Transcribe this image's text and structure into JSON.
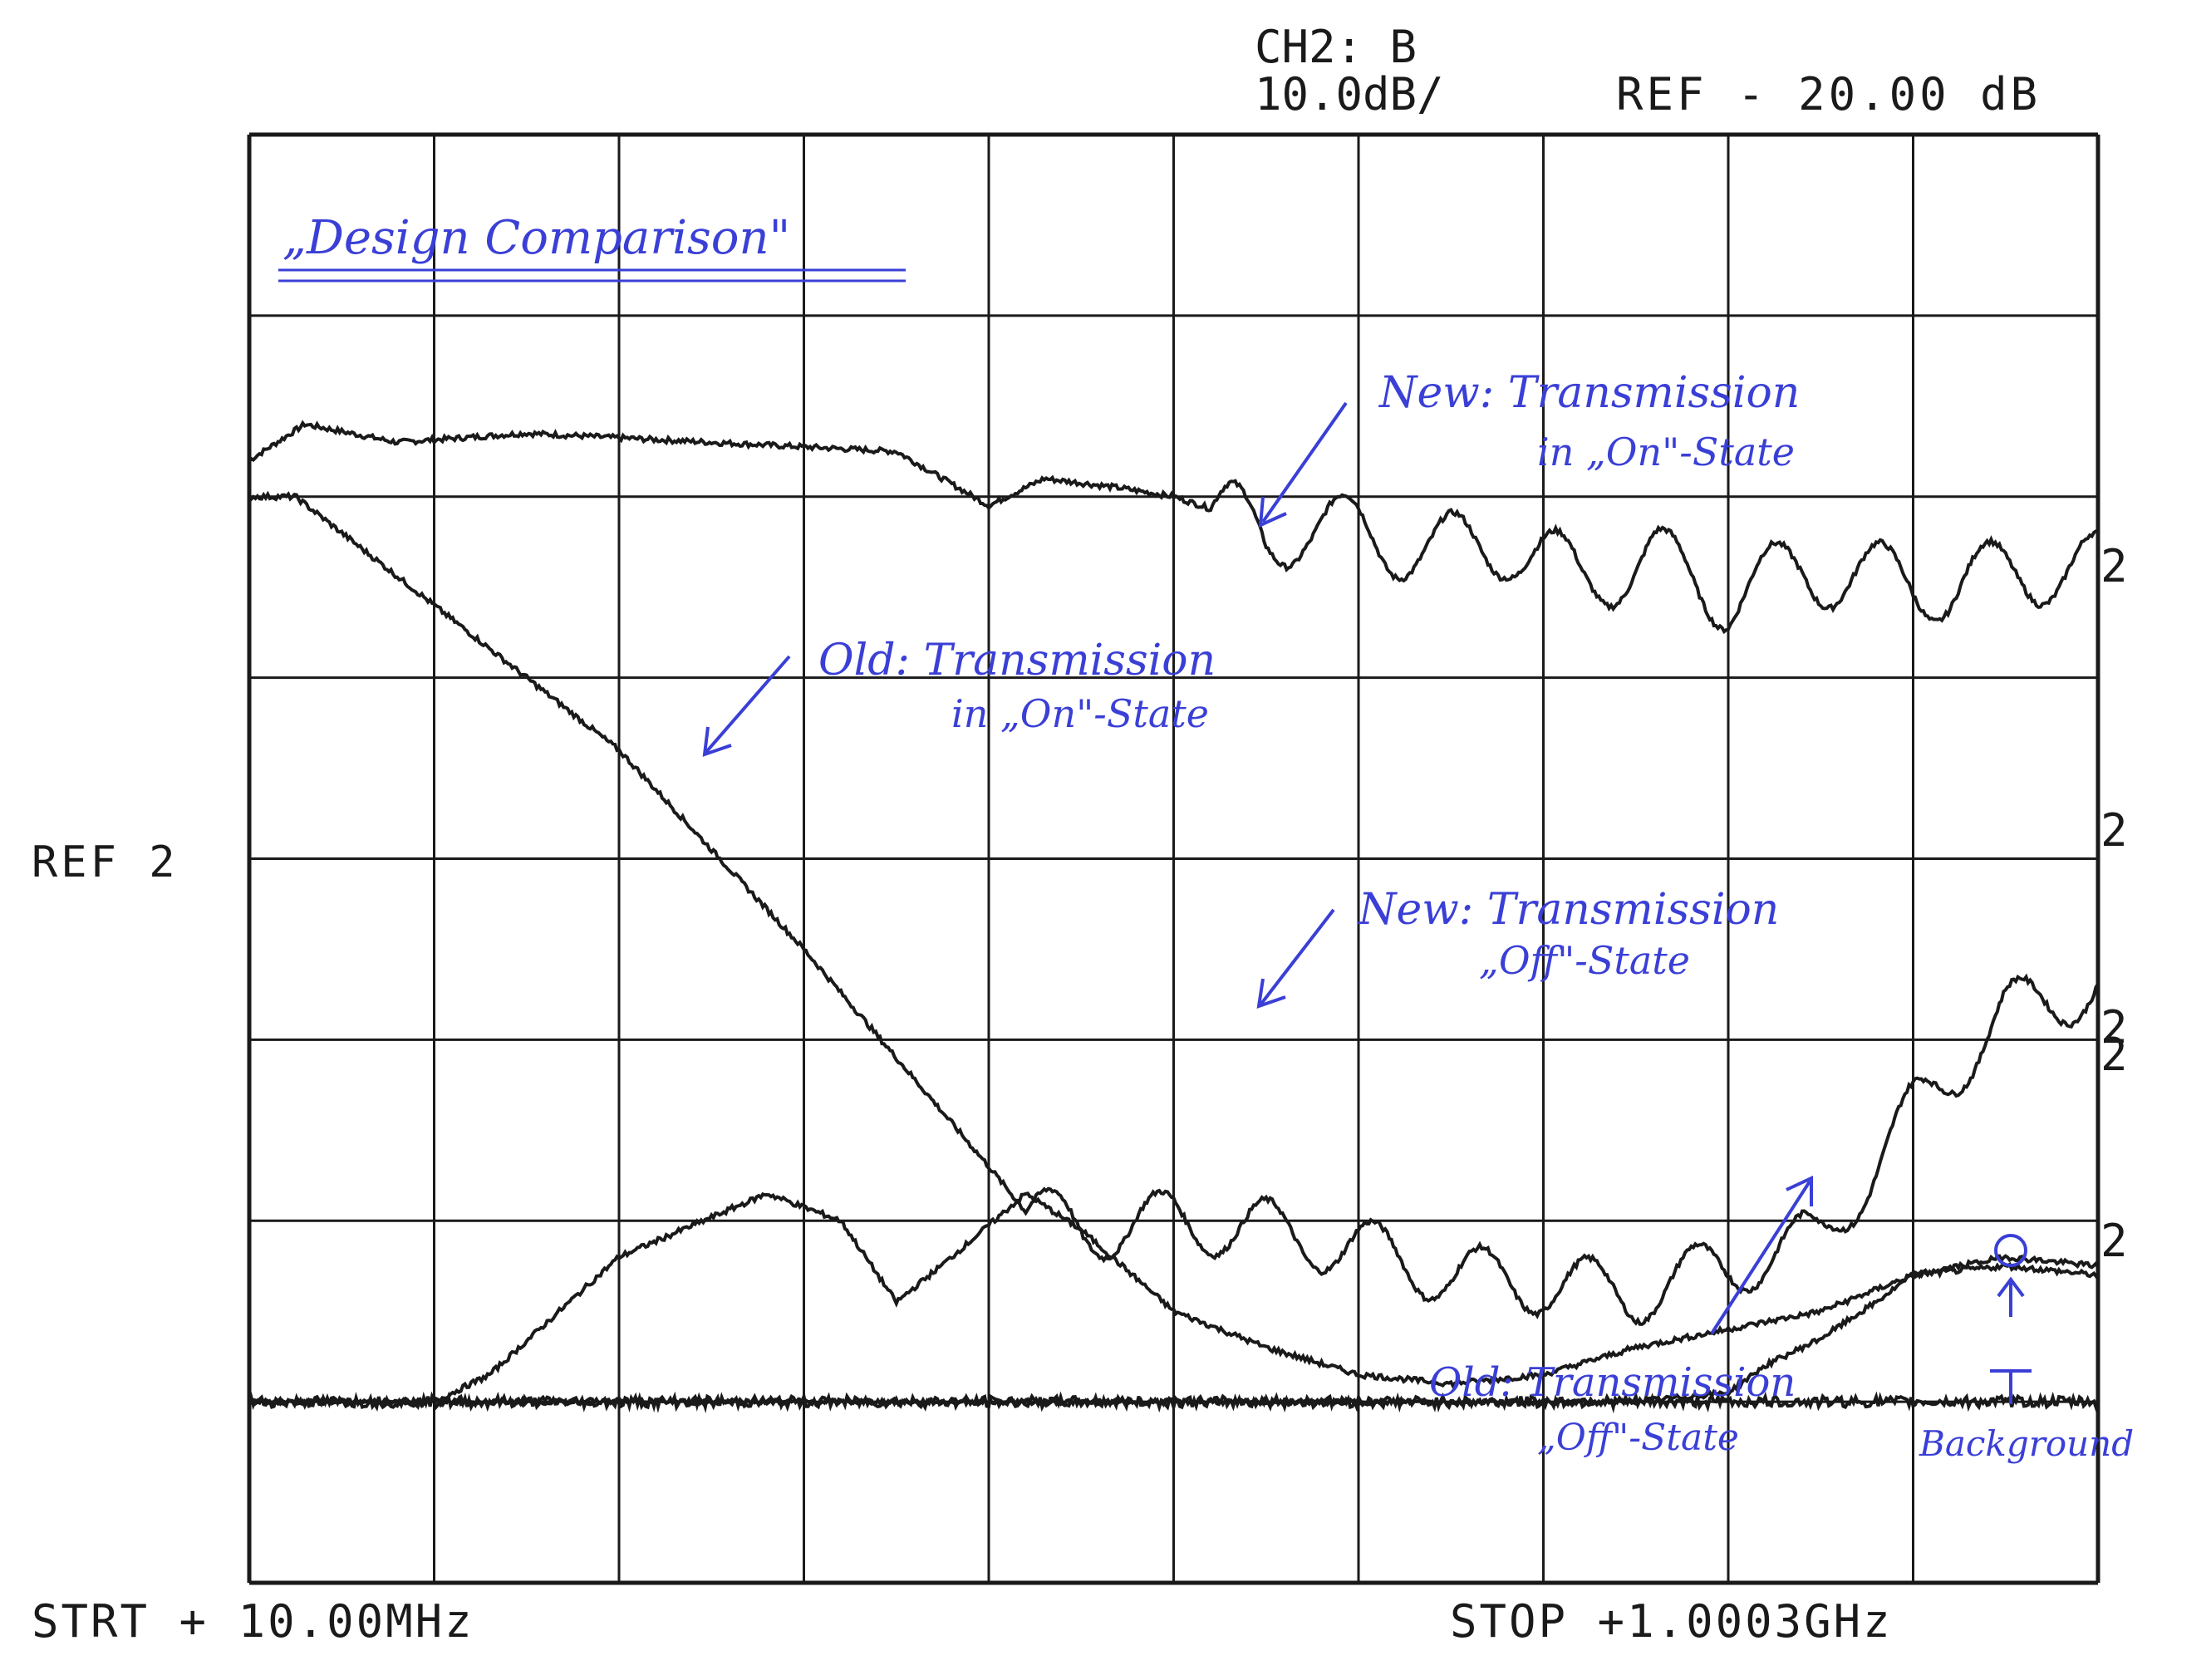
{
  "header": {
    "channel": "CH2:  B",
    "scale": "10.0dB/",
    "ref": "REF - 20.00 dB"
  },
  "ref_marker": "REF 2",
  "start": "STRT + 10.00MHz",
  "stop": "STOP +1.0003GHz",
  "title_note": "„Design Comparison\"",
  "annotations": [
    {
      "id": "new-on",
      "lines": [
        "New: Transmission",
        "in „On\"-State"
      ]
    },
    {
      "id": "old-on",
      "lines": [
        "Old: Transmission",
        "in „On\"-State"
      ]
    },
    {
      "id": "new-off",
      "lines": [
        "New: Transmission",
        "„Off\"-State"
      ]
    },
    {
      "id": "old-off",
      "lines": [
        "Old: Transmission",
        "„Off\"-State"
      ]
    },
    {
      "id": "background",
      "lines": [
        "Background"
      ]
    }
  ],
  "trace_marker": "2",
  "colors": {
    "trace": "#1a1a1a",
    "grid": "#1a1a1a",
    "annotation": "#3a3fd6"
  },
  "chart_data": {
    "type": "line",
    "grid": true,
    "x_divisions": 10,
    "y_divisions": 8,
    "series": [
      {
        "x_div": [
          0,
          0.3,
          0.8,
          1.5,
          2.5,
          3.5,
          4.0,
          4.3,
          4.7,
          5.0,
          5.3,
          5.5,
          5.7,
          6.0,
          6.4,
          6.8,
          7.2,
          7.6,
          8.0,
          8.4,
          8.8,
          9.2,
          9.6,
          10.0
        ],
        "y_div": [
          6.2,
          6.4,
          6.3,
          6.35,
          6.3,
          6.25,
          5.95,
          6.1,
          6.05,
          6.0,
          5.9,
          5.75,
          5.85,
          5.8,
          5.7,
          5.75,
          5.55,
          5.65,
          5.45,
          5.6,
          5.55,
          5.5,
          5.6,
          5.6
        ],
        "wave_amplitude_div": 0.2,
        "wave_start_div": 5.2,
        "wave_period_div": 0.58
      },
      {
        "x_div": [
          0,
          0.25,
          1.0,
          2.0,
          3.0,
          4.0,
          4.2,
          4.5,
          5.0,
          5.5,
          6.0,
          6.5,
          7.0,
          7.5,
          8.0,
          8.5,
          9.0,
          9.5,
          10.0
        ],
        "y_div": [
          6.0,
          6.0,
          5.4,
          4.6,
          3.5,
          2.3,
          2.05,
          1.95,
          2.0,
          1.95,
          1.85,
          1.7,
          1.65,
          1.6,
          1.75,
          1.9,
          2.6,
          3.15,
          3.3
        ],
        "wave_amplitude_div": 0.17,
        "wave_start_div": 4.2,
        "wave_period_div": 0.58
      },
      {
        "x_div": [
          0,
          1.0,
          1.3,
          2.0,
          2.8,
          3.2,
          3.5,
          3.8,
          4.2,
          4.5,
          5.0,
          5.5,
          6.0,
          6.5,
          7.0,
          7.5,
          8.0,
          8.5,
          9.0,
          9.5,
          10.0
        ],
        "y_div": [
          1.0,
          1.0,
          1.15,
          1.8,
          2.15,
          2.0,
          1.55,
          1.8,
          2.15,
          1.95,
          1.5,
          1.3,
          1.15,
          1.1,
          1.15,
          1.3,
          1.4,
          1.5,
          1.7,
          1.75,
          1.7
        ],
        "wave_amplitude_div": 0.0,
        "wave_start_div": 10.0,
        "wave_period_div": 0.58
      },
      {
        "x_div": [
          0,
          6.5,
          7.0,
          7.5,
          8.0,
          8.2,
          8.5,
          8.8,
          9.0,
          9.5,
          10.0
        ],
        "y_div": [
          1.0,
          1.0,
          1.0,
          1.0,
          1.05,
          1.2,
          1.35,
          1.55,
          1.7,
          1.8,
          1.75
        ],
        "wave_amplitude_div": 0.0,
        "wave_start_div": 10.0,
        "wave_period_div": 0.58
      },
      {
        "x_div": [
          0,
          10.0
        ],
        "y_div": [
          1.0,
          1.0
        ],
        "wave_amplitude_div": 0.0,
        "wave_start_div": 10.0,
        "wave_period_div": 0.58
      }
    ]
  }
}
